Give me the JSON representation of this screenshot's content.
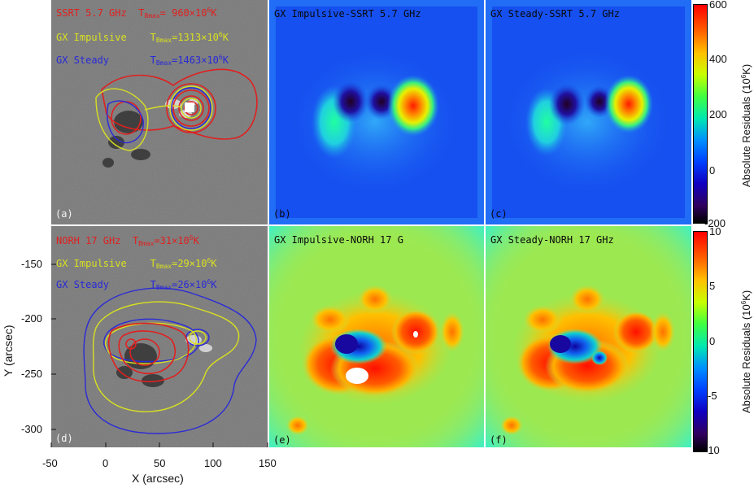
{
  "panels": {
    "a": {
      "label": "(a)",
      "line1": {
        "name": "SSRT 5.7 GHz",
        "t": "T",
        "sub": "Bmax",
        "eq": "=  960×10",
        "sup": "6",
        "unit": "K"
      },
      "line2": {
        "name": "GX Impulsive",
        "t": "T",
        "sub": "Bmax",
        "eq": "=1313×10",
        "sup": "6",
        "unit": "K"
      },
      "line3": {
        "name": "GX Steady",
        "t": "T",
        "sub": "Bmax",
        "eq": "=1463×10",
        "sup": "6",
        "unit": "K"
      }
    },
    "b": {
      "label": "(b)",
      "title": "GX Impulsive-SSRT 5.7 GHz"
    },
    "c": {
      "label": "(c)",
      "title": "GX Steady-SSRT 5.7 GHz"
    },
    "d": {
      "label": "(d)",
      "line1": {
        "name": "NORH 17 GHz",
        "t": "T",
        "sub": "Bmax",
        "eq": "=31×10",
        "sup": "6",
        "unit": "K"
      },
      "line2": {
        "name": "GX Impulsive",
        "t": "T",
        "sub": "Bmax",
        "eq": "=29×10",
        "sup": "6",
        "unit": "K"
      },
      "line3": {
        "name": "GX Steady",
        "t": "T",
        "sub": "Bmax",
        "eq": "=26×10",
        "sup": "6",
        "unit": "K"
      }
    },
    "e": {
      "label": "(e)",
      "title": "GX Impulsive-NORH 17 G"
    },
    "f": {
      "label": "(f)",
      "title": "GX Steady-NORH 17 GHz"
    }
  },
  "axes": {
    "xlabel": "X (arcsec)",
    "ylabel": "Y (arcsec)",
    "xticks": [
      "-50",
      "0",
      "50",
      "100",
      "150"
    ],
    "yticks": [
      "-150",
      "-200",
      "-250",
      "-300"
    ]
  },
  "colorbar_top": {
    "ticks": [
      "600",
      "400",
      "200",
      "0",
      "-200"
    ],
    "title_prefix": "Absolute Residuals (10",
    "title_sup": "6",
    "title_suffix": "K)"
  },
  "colorbar_bottom": {
    "ticks": [
      "10",
      "5",
      "0",
      "-5",
      "-10"
    ],
    "title_prefix": "Absolute Residuals (10",
    "title_sup": "6",
    "title_suffix": "K)"
  },
  "colors": {
    "ssrt": "#e02020",
    "impulsive": "#d8e020",
    "steady": "#2a2ad8",
    "magnetogram_bg": "#7a7a7a"
  }
}
